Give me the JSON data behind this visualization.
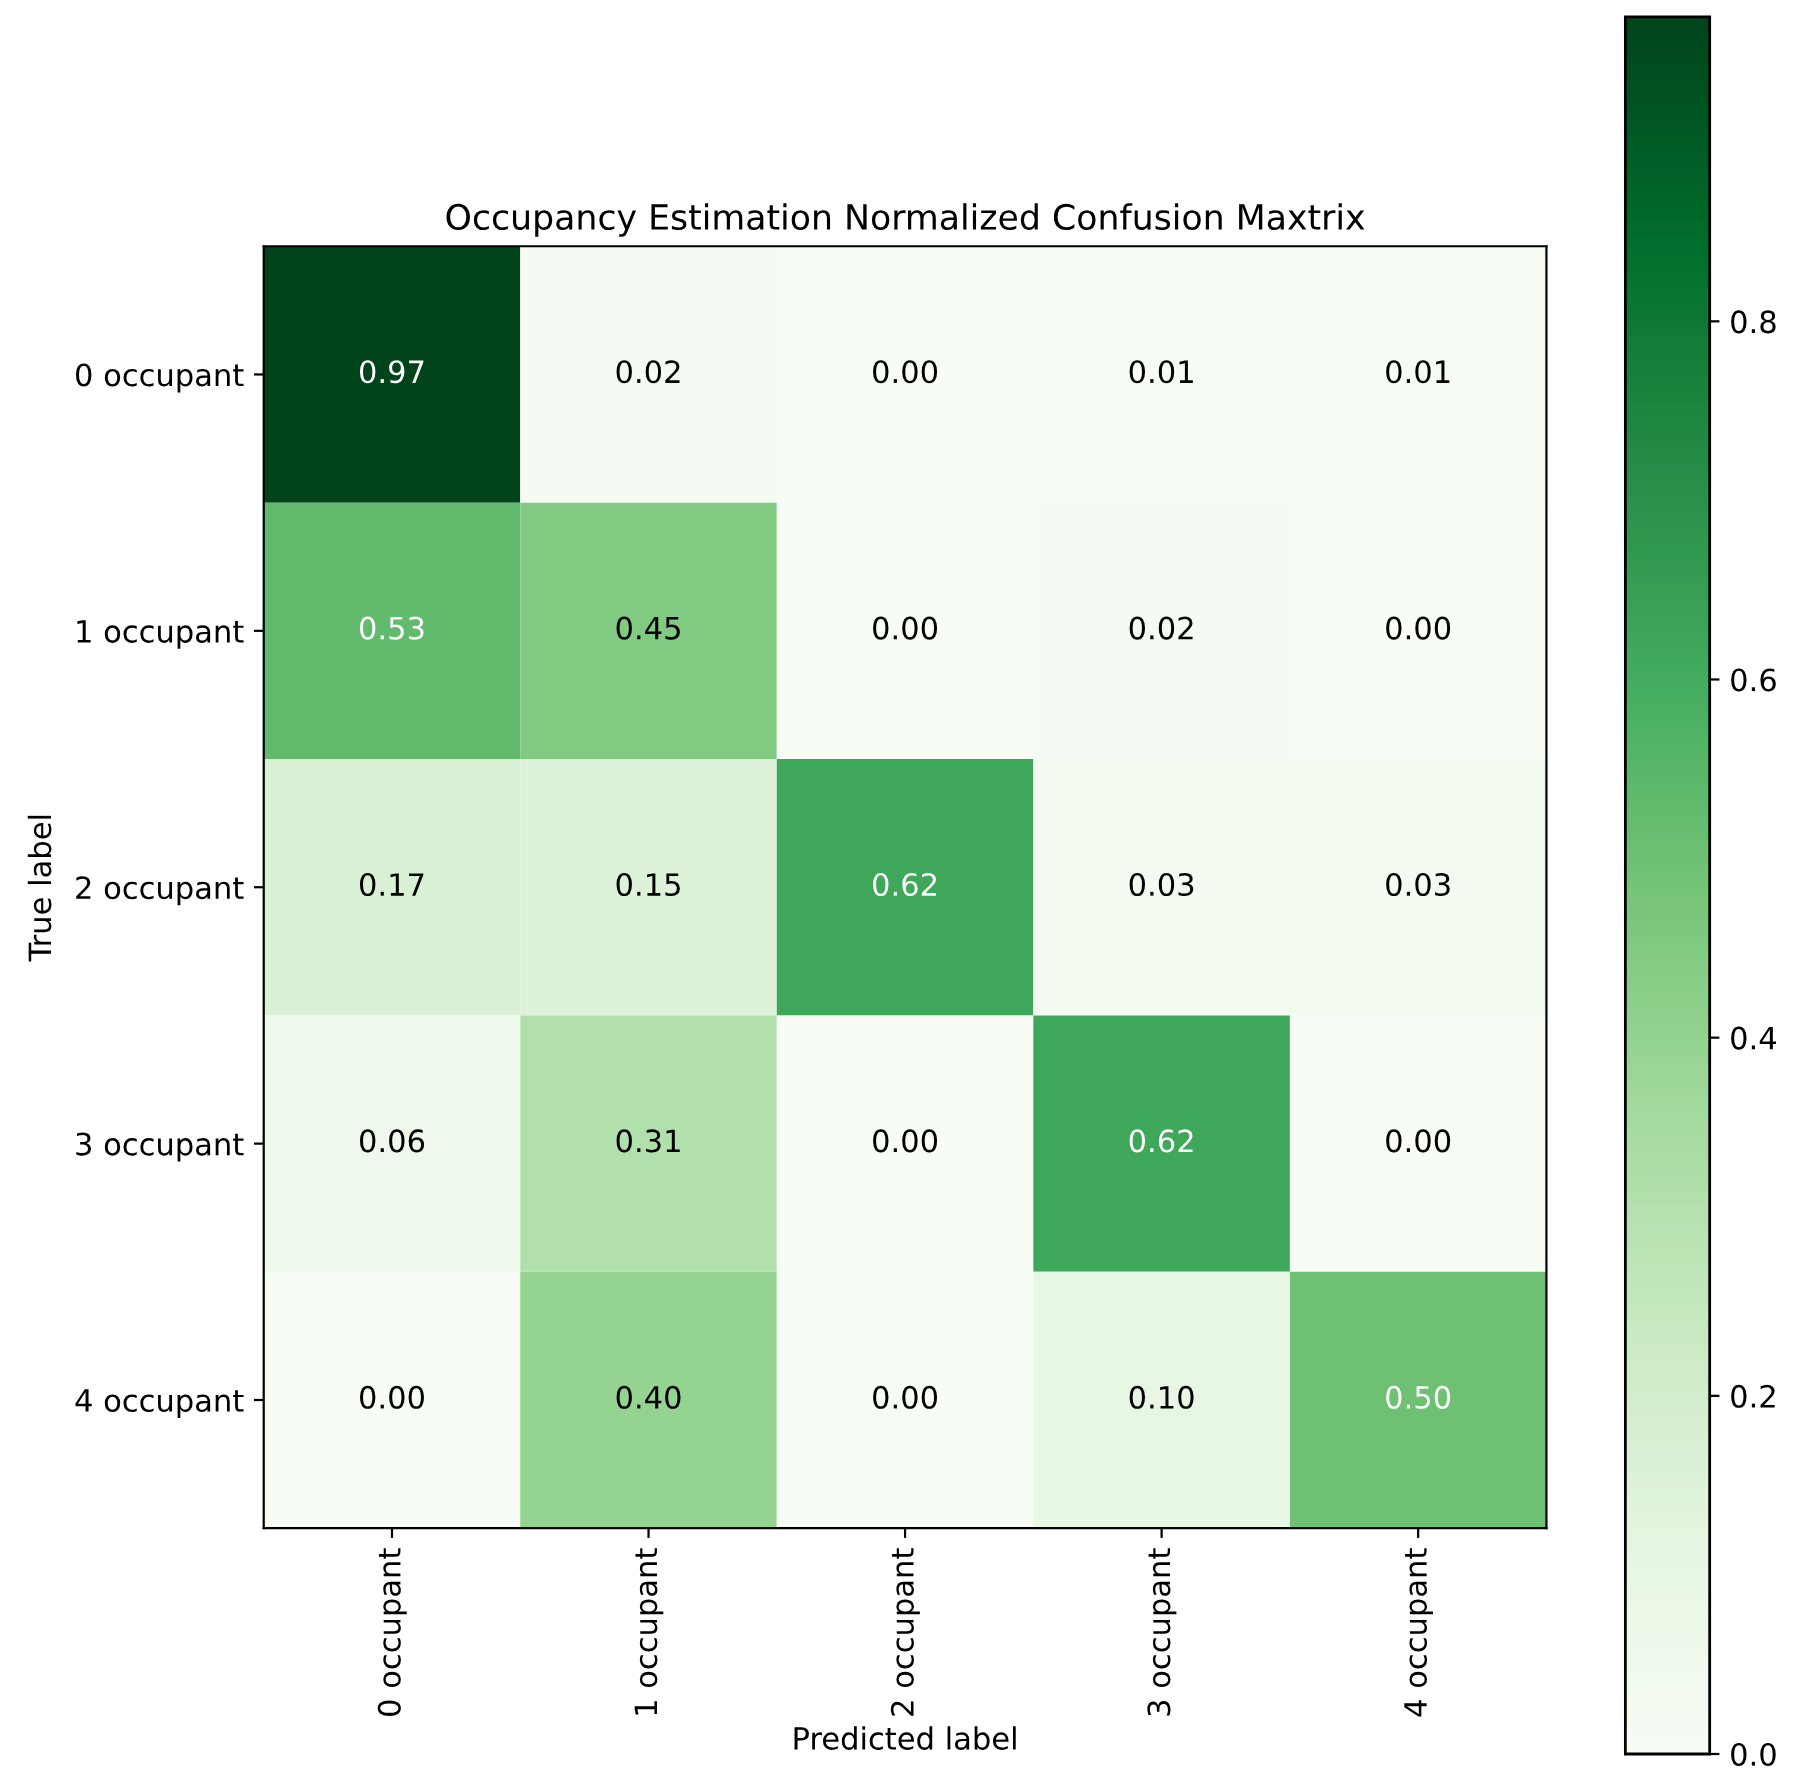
{
  "chart_data": {
    "type": "heatmap",
    "title": "Occupancy Estimation Normalized Confusion Maxtrix",
    "xlabel": "Predicted label",
    "ylabel": "True label",
    "categories": [
      "0 occupant",
      "1 occupant",
      "2 occupant",
      "3 occupant",
      "4 occupant"
    ],
    "y_categories": [
      "0 occupant",
      "1 occupant",
      "2 occupant",
      "3 occupant",
      "4 occupant"
    ],
    "cells": [
      [
        0.97,
        0.02,
        0.0,
        0.01,
        0.01
      ],
      [
        0.53,
        0.45,
        0.0,
        0.02,
        0.0
      ],
      [
        0.17,
        0.15,
        0.62,
        0.03,
        0.03
      ],
      [
        0.06,
        0.31,
        0.0,
        0.62,
        0.0
      ],
      [
        0.0,
        0.4,
        0.0,
        0.1,
        0.5
      ]
    ],
    "cell_labels": [
      [
        "0.97",
        "0.02",
        "0.00",
        "0.01",
        "0.01"
      ],
      [
        "0.53",
        "0.45",
        "0.00",
        "0.02",
        "0.00"
      ],
      [
        "0.17",
        "0.15",
        "0.62",
        "0.03",
        "0.03"
      ],
      [
        "0.06",
        "0.31",
        "0.00",
        "0.62",
        "0.00"
      ],
      [
        "0.00",
        "0.40",
        "0.00",
        "0.10",
        "0.50"
      ]
    ],
    "clim": [
      0,
      0.97
    ],
    "cticks": [
      {
        "value": 0,
        "label": "0.0"
      },
      {
        "value": 0.2,
        "label": "0.2"
      },
      {
        "value": 0.4,
        "label": "0.4"
      },
      {
        "value": 0.6,
        "label": "0.6"
      },
      {
        "value": 0.8,
        "label": "0.8"
      }
    ]
  }
}
